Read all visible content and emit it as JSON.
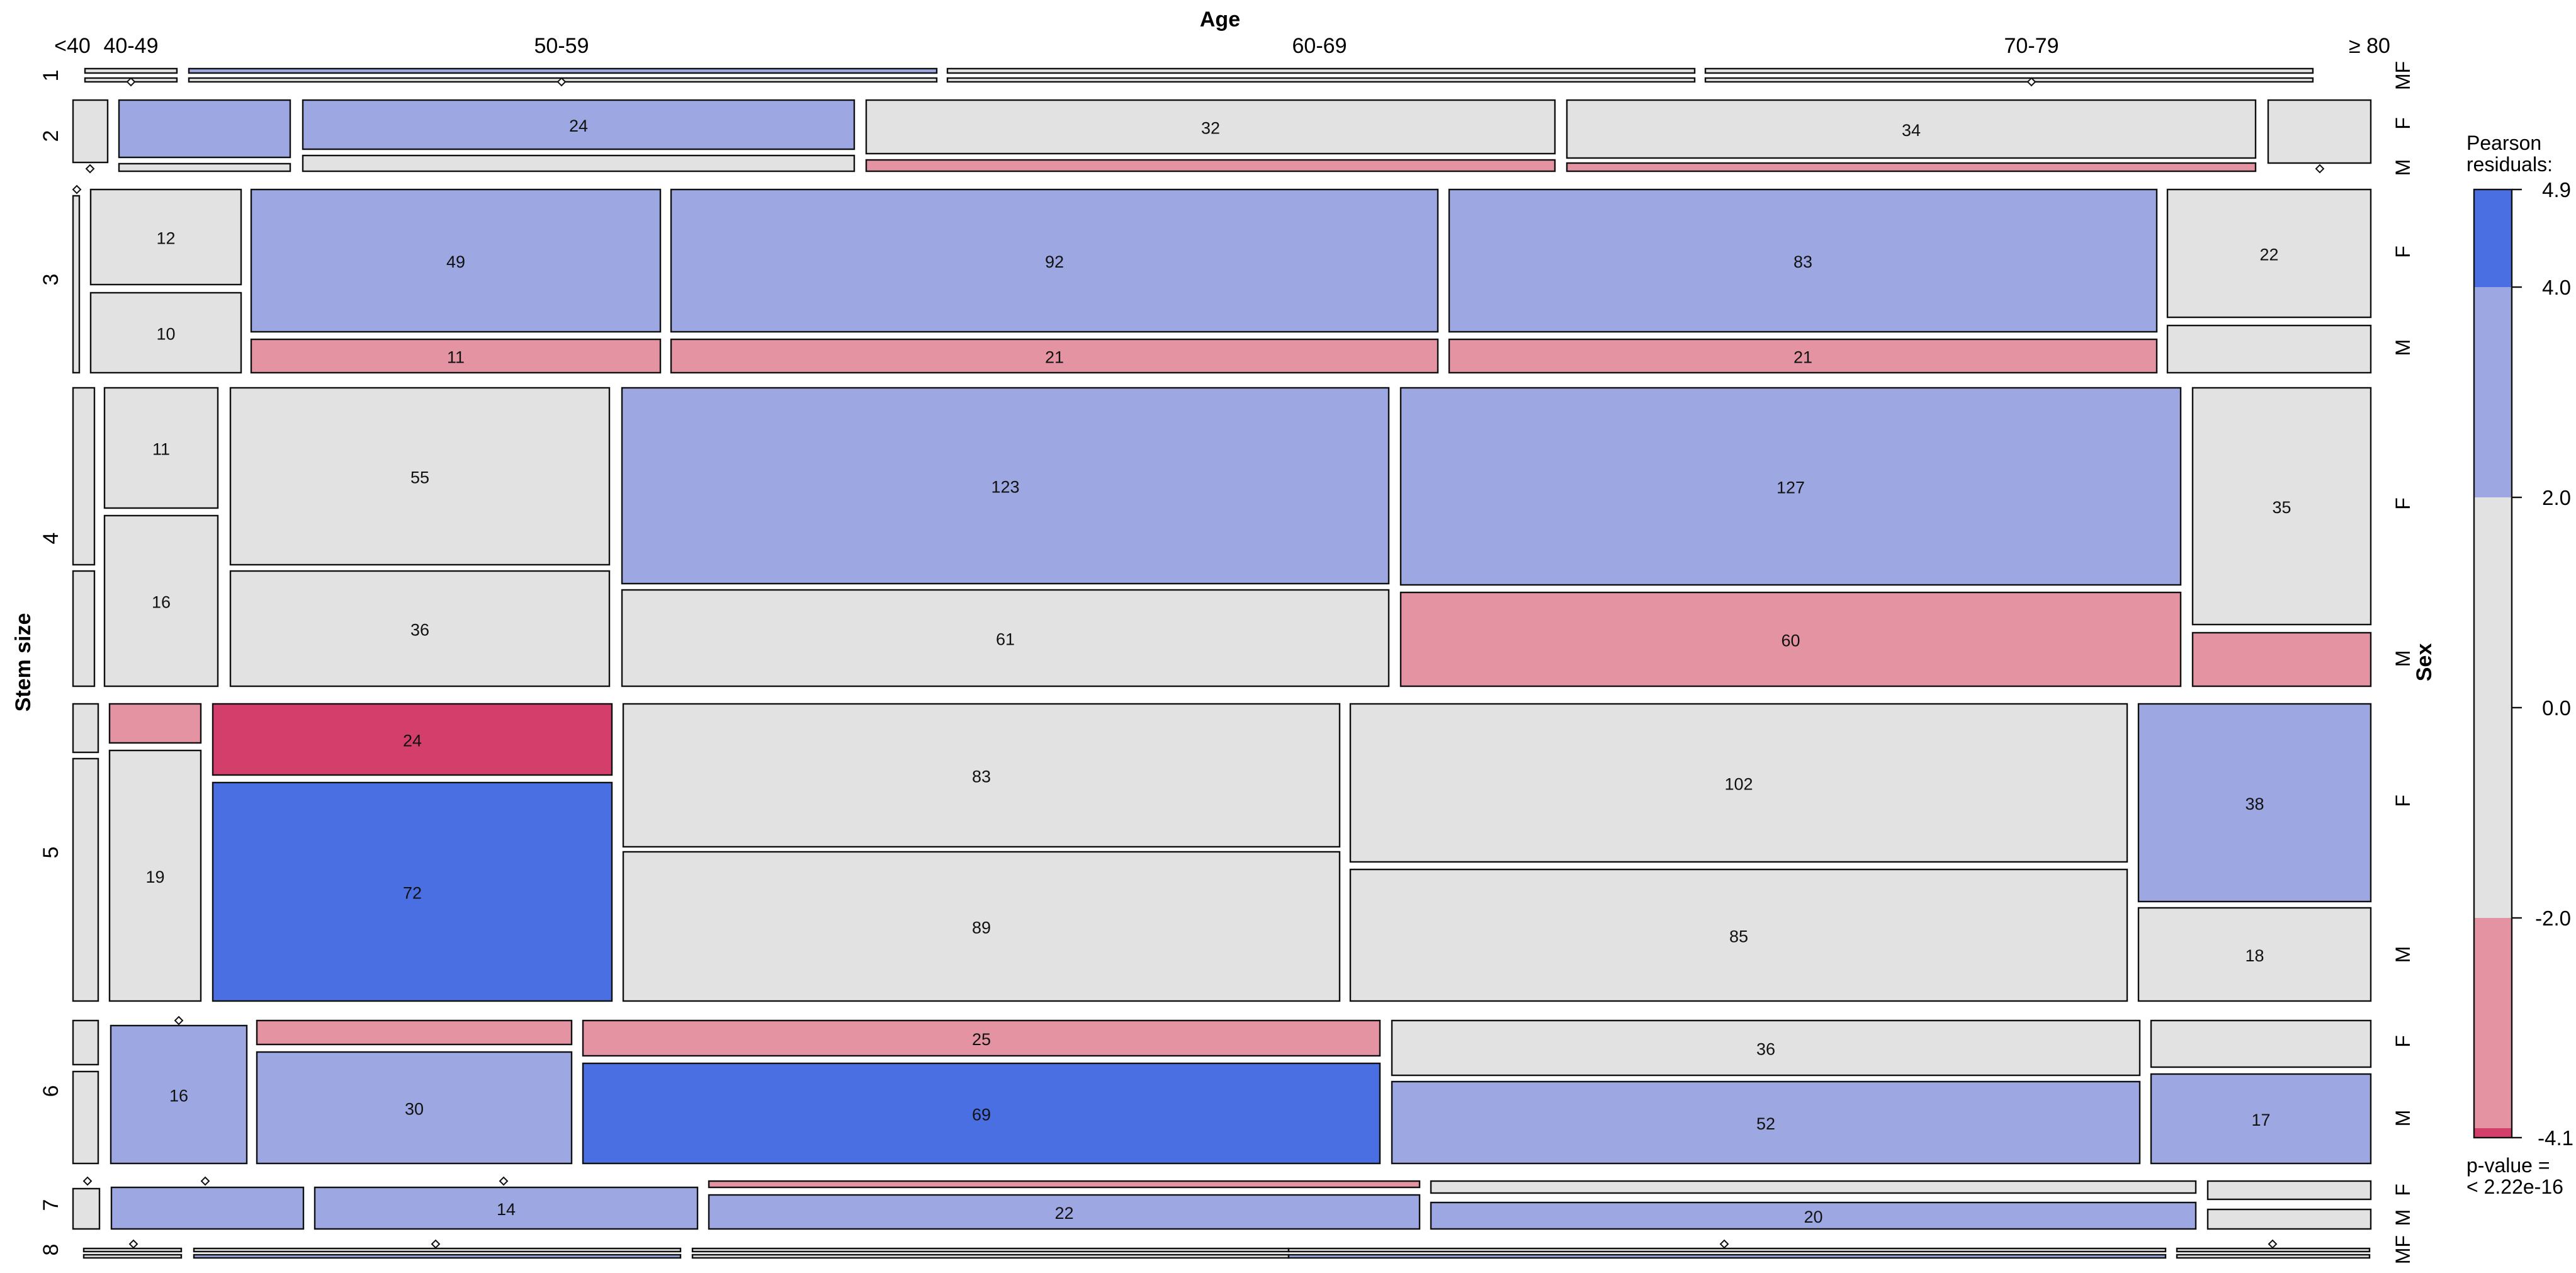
{
  "chart_data": {
    "type": "mosaic",
    "title": "",
    "x_variable": "Age",
    "y_variable": "Stem size",
    "z_variable": "Sex",
    "age_levels": [
      "<40",
      "40-49",
      "50-59",
      "60-69",
      "70-79",
      "≥ 80"
    ],
    "stem_levels": [
      "1",
      "2",
      "3",
      "4",
      "5",
      "6",
      "7",
      "8"
    ],
    "sex_levels": [
      "F",
      "M"
    ],
    "sex_axis_label_row1": "MF",
    "sex_axis_label_row8": "MF",
    "legend": {
      "title_line1": "Pearson",
      "title_line2": "residuals:",
      "ticks": [
        "4.9",
        "4.0",
        "2.0",
        "0.0",
        "-2.0",
        "-4.1"
      ],
      "range": [
        -4.1,
        4.9
      ],
      "pvalue_line1": "p-value =",
      "pvalue_line2": "< 2.22e-16"
    },
    "colors": {
      "strong_positive": "#4A6FE3",
      "positive": "#9DA8E2",
      "neutral": "#E2E2E2",
      "negative": "#E393A1",
      "strong_negative": "#D33F6A",
      "outline": "#111111",
      "background": "#FFFFFF"
    },
    "cells": [
      {
        "stem": "2",
        "age": "50-59",
        "sex": "F",
        "count": "24",
        "residual_class": "positive"
      },
      {
        "stem": "2",
        "age": "60-69",
        "sex": "F",
        "count": "32",
        "residual_class": "neutral"
      },
      {
        "stem": "2",
        "age": "70-79",
        "sex": "F",
        "count": "34",
        "residual_class": "neutral"
      },
      {
        "stem": "3",
        "age": "40-49",
        "sex": "F",
        "count": "12",
        "residual_class": "neutral"
      },
      {
        "stem": "3",
        "age": "40-49",
        "sex": "M",
        "count": "10",
        "residual_class": "neutral"
      },
      {
        "stem": "3",
        "age": "50-59",
        "sex": "F",
        "count": "49",
        "residual_class": "positive"
      },
      {
        "stem": "3",
        "age": "50-59",
        "sex": "M",
        "count": "11",
        "residual_class": "negative"
      },
      {
        "stem": "3",
        "age": "60-69",
        "sex": "F",
        "count": "92",
        "residual_class": "positive"
      },
      {
        "stem": "3",
        "age": "60-69",
        "sex": "M",
        "count": "21",
        "residual_class": "negative"
      },
      {
        "stem": "3",
        "age": "70-79",
        "sex": "F",
        "count": "83",
        "residual_class": "positive"
      },
      {
        "stem": "3",
        "age": "70-79",
        "sex": "M",
        "count": "21",
        "residual_class": "negative"
      },
      {
        "stem": "3",
        "age": "≥ 80",
        "sex": "F",
        "count": "22",
        "residual_class": "neutral"
      },
      {
        "stem": "4",
        "age": "40-49",
        "sex": "F",
        "count": "11",
        "residual_class": "neutral"
      },
      {
        "stem": "4",
        "age": "40-49",
        "sex": "M",
        "count": "16",
        "residual_class": "neutral"
      },
      {
        "stem": "4",
        "age": "50-59",
        "sex": "F",
        "count": "55",
        "residual_class": "neutral"
      },
      {
        "stem": "4",
        "age": "50-59",
        "sex": "M",
        "count": "36",
        "residual_class": "neutral"
      },
      {
        "stem": "4",
        "age": "60-69",
        "sex": "F",
        "count": "123",
        "residual_class": "positive"
      },
      {
        "stem": "4",
        "age": "60-69",
        "sex": "M",
        "count": "61",
        "residual_class": "neutral"
      },
      {
        "stem": "4",
        "age": "70-79",
        "sex": "F",
        "count": "127",
        "residual_class": "positive"
      },
      {
        "stem": "4",
        "age": "70-79",
        "sex": "M",
        "count": "60",
        "residual_class": "negative"
      },
      {
        "stem": "4",
        "age": "≥ 80",
        "sex": "F",
        "count": "35",
        "residual_class": "neutral"
      },
      {
        "stem": "5",
        "age": "40-49",
        "sex": "M",
        "count": "19",
        "residual_class": "neutral"
      },
      {
        "stem": "5",
        "age": "50-59",
        "sex": "F",
        "count": "24",
        "residual_class": "strong_negative"
      },
      {
        "stem": "5",
        "age": "50-59",
        "sex": "M",
        "count": "72",
        "residual_class": "strong_positive"
      },
      {
        "stem": "5",
        "age": "60-69",
        "sex": "F",
        "count": "83",
        "residual_class": "neutral"
      },
      {
        "stem": "5",
        "age": "60-69",
        "sex": "M",
        "count": "89",
        "residual_class": "neutral"
      },
      {
        "stem": "5",
        "age": "70-79",
        "sex": "F",
        "count": "102",
        "residual_class": "neutral"
      },
      {
        "stem": "5",
        "age": "70-79",
        "sex": "M",
        "count": "85",
        "residual_class": "neutral"
      },
      {
        "stem": "5",
        "age": "≥ 80",
        "sex": "F",
        "count": "38",
        "residual_class": "positive"
      },
      {
        "stem": "5",
        "age": "≥ 80",
        "sex": "M",
        "count": "18",
        "residual_class": "neutral"
      },
      {
        "stem": "6",
        "age": "40-49",
        "sex": "M",
        "count": "16",
        "residual_class": "positive"
      },
      {
        "stem": "6",
        "age": "50-59",
        "sex": "M",
        "count": "30",
        "residual_class": "positive"
      },
      {
        "stem": "6",
        "age": "60-69",
        "sex": "F",
        "count": "25",
        "residual_class": "negative"
      },
      {
        "stem": "6",
        "age": "60-69",
        "sex": "M",
        "count": "69",
        "residual_class": "strong_positive"
      },
      {
        "stem": "6",
        "age": "70-79",
        "sex": "F",
        "count": "36",
        "residual_class": "neutral"
      },
      {
        "stem": "6",
        "age": "70-79",
        "sex": "M",
        "count": "52",
        "residual_class": "positive"
      },
      {
        "stem": "6",
        "age": "≥ 80",
        "sex": "M",
        "count": "17",
        "residual_class": "positive"
      },
      {
        "stem": "7",
        "age": "50-59",
        "sex": "M",
        "count": "14",
        "residual_class": "positive"
      },
      {
        "stem": "7",
        "age": "60-69",
        "sex": "M",
        "count": "22",
        "residual_class": "positive"
      },
      {
        "stem": "7",
        "age": "70-79",
        "sex": "M",
        "count": "20",
        "residual_class": "positive"
      }
    ]
  }
}
